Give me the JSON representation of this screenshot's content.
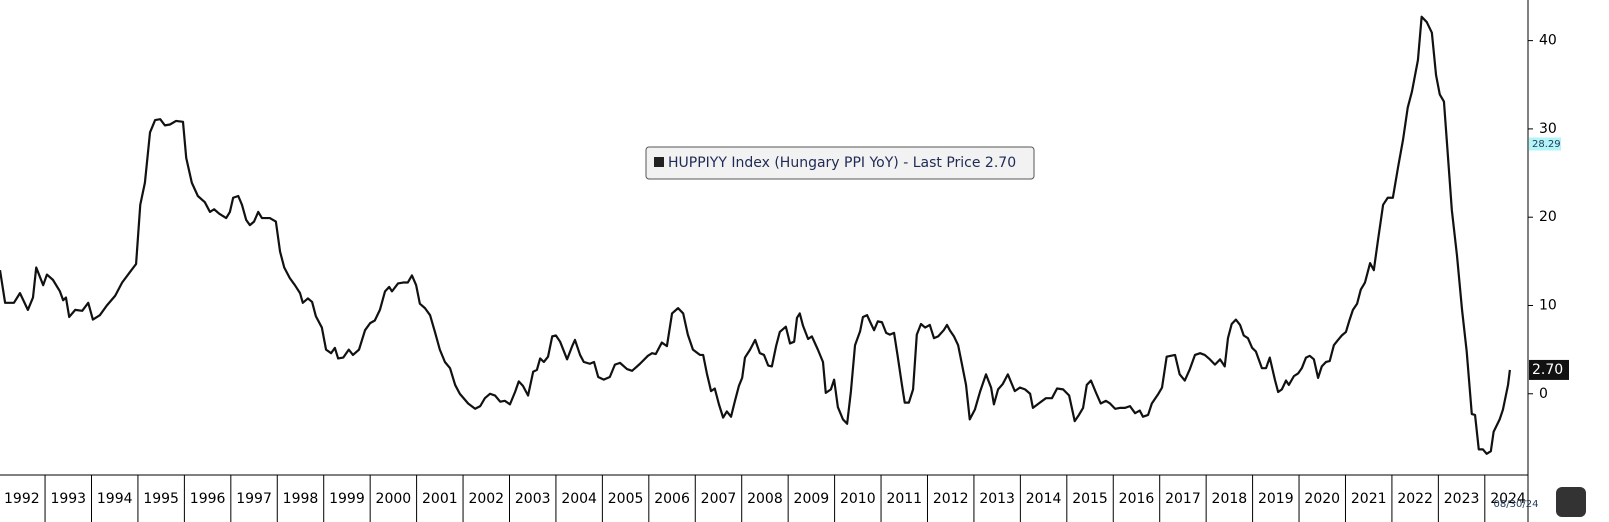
{
  "chart_data": {
    "type": "line",
    "xlim": [
      1992.03,
      2024.93
    ],
    "ylim": [
      -9.2,
      44.6
    ],
    "yticks": [
      0,
      10,
      20,
      30,
      40
    ],
    "xticks": [
      1992,
      1993,
      1994,
      1995,
      1996,
      1997,
      1998,
      1999,
      2000,
      2001,
      2002,
      2003,
      2004,
      2005,
      2006,
      2007,
      2008,
      2009,
      2010,
      2011,
      2012,
      2013,
      2014,
      2015,
      2016,
      2017,
      2018,
      2019,
      2020,
      2021,
      2022,
      2023,
      2024
    ],
    "legend": "center",
    "grid": false,
    "as_of": "08/30/24",
    "price_tags": {
      "values": [
        28.29,
        2.7
      ],
      "value_labels": [
        "28.29",
        "2.70"
      ],
      "colors": [
        "#b3f4f7",
        "#111111"
      ],
      "text_colors": [
        "#1f3a5a",
        "#ffffff"
      ]
    },
    "series": [
      {
        "name": "HUPPIYY Index (Hungary PPI YoY) - Last Price 2.70",
        "color": "#111111",
        "x": [
          1992.03,
          1992.14,
          1992.33,
          1992.46,
          1992.63,
          1992.74,
          1992.81,
          1992.96,
          1993.04,
          1993.17,
          1993.32,
          1993.39,
          1993.45,
          1993.52,
          1993.65,
          1993.8,
          1993.93,
          1994.03,
          1994.18,
          1994.33,
          1994.51,
          1994.66,
          1994.83,
          1994.96,
          1995.05,
          1995.15,
          1995.26,
          1995.37,
          1995.48,
          1995.58,
          1995.69,
          1995.82,
          1995.97,
          1996.04,
          1996.16,
          1996.29,
          1996.44,
          1996.55,
          1996.64,
          1996.75,
          1996.9,
          1996.98,
          1997.05,
          1997.16,
          1997.24,
          1997.33,
          1997.41,
          1997.5,
          1997.59,
          1997.67,
          1997.84,
          1997.97,
          1998.06,
          1998.15,
          1998.27,
          1998.38,
          1998.49,
          1998.55,
          1998.66,
          1998.75,
          1998.83,
          1998.96,
          1999.05,
          1999.16,
          1999.24,
          1999.31,
          1999.42,
          1999.54,
          1999.63,
          1999.76,
          1999.89,
          2000.0,
          2000.1,
          2000.21,
          2000.32,
          2000.41,
          2000.47,
          2000.6,
          2000.71,
          2000.81,
          2000.9,
          2000.99,
          2001.07,
          2001.18,
          2001.29,
          2001.4,
          2001.5,
          2001.61,
          2001.72,
          2001.83,
          2001.93,
          2002.11,
          2002.26,
          2002.37,
          2002.47,
          2002.58,
          2002.69,
          2002.8,
          2002.9,
          2003.01,
          2003.12,
          2003.2,
          2003.29,
          2003.4,
          2003.51,
          2003.59,
          2003.66,
          2003.74,
          2003.83,
          2003.92,
          2004.0,
          2004.09,
          2004.24,
          2004.35,
          2004.41,
          2004.52,
          2004.6,
          2004.73,
          2004.82,
          2004.91,
          2005.03,
          2005.16,
          2005.27,
          2005.38,
          2005.53,
          2005.64,
          2005.81,
          2005.98,
          2006.07,
          2006.15,
          2006.28,
          2006.39,
          2006.5,
          2006.63,
          2006.74,
          2006.84,
          2006.95,
          2007.1,
          2007.17,
          2007.25,
          2007.34,
          2007.42,
          2007.51,
          2007.6,
          2007.68,
          2007.77,
          2007.85,
          2007.94,
          2008.01,
          2008.07,
          2008.18,
          2008.29,
          2008.39,
          2008.48,
          2008.57,
          2008.65,
          2008.74,
          2008.82,
          2008.95,
          2009.04,
          2009.13,
          2009.19,
          2009.25,
          2009.32,
          2009.43,
          2009.51,
          2009.64,
          2009.75,
          2009.81,
          2009.92,
          2009.99,
          2010.07,
          2010.18,
          2010.27,
          2010.35,
          2010.44,
          2010.55,
          2010.61,
          2010.7,
          2010.76,
          2010.85,
          2010.93,
          2011.02,
          2011.11,
          2011.19,
          2011.28,
          2011.36,
          2011.45,
          2011.51,
          2011.6,
          2011.69,
          2011.77,
          2011.86,
          2011.95,
          2012.05,
          2012.14,
          2012.23,
          2012.35,
          2012.42,
          2012.48,
          2012.57,
          2012.66,
          2012.74,
          2012.83,
          2012.91,
          2013.02,
          2013.13,
          2013.26,
          2013.37,
          2013.43,
          2013.52,
          2013.62,
          2013.73,
          2013.88,
          2013.99,
          2014.1,
          2014.21,
          2014.27,
          2014.42,
          2014.55,
          2014.68,
          2014.79,
          2014.92,
          2015.05,
          2015.17,
          2015.26,
          2015.35,
          2015.43,
          2015.52,
          2015.63,
          2015.73,
          2015.84,
          2015.93,
          2016.04,
          2016.14,
          2016.25,
          2016.36,
          2016.47,
          2016.57,
          2016.64,
          2016.75,
          2016.83,
          2016.96,
          2017.05,
          2017.15,
          2017.33,
          2017.43,
          2017.54,
          2017.65,
          2017.76,
          2017.87,
          2017.97,
          2018.08,
          2018.19,
          2018.3,
          2018.4,
          2018.47,
          2018.55,
          2018.64,
          2018.73,
          2018.81,
          2018.9,
          2018.99,
          2019.07,
          2019.2,
          2019.29,
          2019.37,
          2019.48,
          2019.55,
          2019.63,
          2019.72,
          2019.78,
          2019.89,
          2019.98,
          2020.06,
          2020.15,
          2020.23,
          2020.32,
          2020.41,
          2020.49,
          2020.58,
          2020.66,
          2020.75,
          2020.84,
          2020.92,
          2021.01,
          2021.09,
          2021.16,
          2021.25,
          2021.33,
          2021.42,
          2021.53,
          2021.61,
          2021.7,
          2021.81,
          2021.91,
          2022.02,
          2022.13,
          2022.24,
          2022.34,
          2022.43,
          2022.56,
          2022.64,
          2022.75,
          2022.86,
          2022.95,
          2023.03,
          2023.12,
          2023.18,
          2023.29,
          2023.4,
          2023.51,
          2023.61,
          2023.72,
          2023.79,
          2023.87,
          2023.96,
          2024.04,
          2024.13,
          2024.19,
          2024.32,
          2024.39,
          2024.5,
          2024.54
        ],
        "values": [
          14.0,
          10.3,
          10.3,
          11.4,
          9.5,
          10.9,
          14.3,
          12.3,
          13.5,
          12.9,
          11.6,
          10.6,
          10.9,
          8.7,
          9.5,
          9.4,
          10.3,
          8.4,
          8.9,
          10.0,
          11.1,
          12.6,
          13.8,
          14.7,
          21.4,
          23.9,
          29.6,
          31.0,
          31.1,
          30.4,
          30.5,
          30.9,
          30.8,
          26.7,
          23.9,
          22.4,
          21.7,
          20.6,
          20.9,
          20.4,
          19.9,
          20.6,
          22.2,
          22.4,
          21.4,
          19.7,
          19.1,
          19.5,
          20.6,
          19.9,
          19.9,
          19.5,
          16.1,
          14.3,
          13.1,
          12.3,
          11.4,
          10.3,
          10.8,
          10.4,
          8.8,
          7.5,
          5.0,
          4.6,
          5.2,
          4.0,
          4.1,
          5.0,
          4.4,
          5.0,
          7.2,
          8.0,
          8.3,
          9.5,
          11.6,
          12.1,
          11.6,
          12.5,
          12.6,
          12.6,
          13.4,
          12.3,
          10.2,
          9.7,
          8.9,
          6.9,
          5.0,
          3.6,
          2.9,
          1.0,
          0.0,
          -1.1,
          -1.7,
          -1.4,
          -0.5,
          0.0,
          -0.2,
          -0.9,
          -0.8,
          -1.2,
          0.2,
          1.4,
          0.9,
          -0.2,
          2.5,
          2.7,
          4.0,
          3.6,
          4.2,
          6.5,
          6.6,
          5.9,
          3.9,
          5.4,
          6.1,
          4.4,
          3.6,
          3.4,
          3.6,
          1.9,
          1.6,
          1.9,
          3.3,
          3.5,
          2.8,
          2.6,
          3.4,
          4.3,
          4.6,
          4.5,
          5.8,
          5.4,
          9.1,
          9.7,
          9.1,
          6.7,
          5.0,
          4.4,
          4.4,
          2.3,
          0.3,
          0.6,
          -1.2,
          -2.7,
          -2.0,
          -2.6,
          -0.9,
          0.9,
          1.8,
          4.1,
          5.0,
          6.1,
          4.6,
          4.4,
          3.2,
          3.1,
          5.4,
          7.0,
          7.6,
          5.7,
          5.9,
          8.6,
          9.1,
          7.7,
          6.2,
          6.5,
          5.0,
          3.6,
          0.1,
          0.5,
          1.6,
          -1.5,
          -2.9,
          -3.4,
          0.2,
          5.5,
          7.1,
          8.7,
          8.9,
          8.2,
          7.2,
          8.2,
          8.1,
          6.9,
          6.7,
          6.9,
          4.2,
          1.0,
          -1.0,
          -1.0,
          0.5,
          6.7,
          7.9,
          7.5,
          7.8,
          6.3,
          6.5,
          7.2,
          7.8,
          7.2,
          6.5,
          5.5,
          3.4,
          1.0,
          -2.9,
          -1.8,
          0.2,
          2.2,
          0.7,
          -1.2,
          0.5,
          1.1,
          2.2,
          0.3,
          0.7,
          0.5,
          0.0,
          -1.6,
          -1.0,
          -0.5,
          -0.5,
          0.6,
          0.5,
          -0.2,
          -3.1,
          -2.4,
          -1.6,
          1.0,
          1.5,
          0.1,
          -1.1,
          -0.8,
          -1.1,
          -1.7,
          -1.6,
          -1.6,
          -1.4,
          -2.2,
          -1.9,
          -2.6,
          -2.4,
          -1.1,
          -0.1,
          0.7,
          4.2,
          4.4,
          2.2,
          1.5,
          2.8,
          4.4,
          4.6,
          4.4,
          3.9,
          3.3,
          3.9,
          3.1,
          6.3,
          7.9,
          8.4,
          7.8,
          6.6,
          6.3,
          5.2,
          4.8,
          2.9,
          2.9,
          4.1,
          1.6,
          0.2,
          0.5,
          1.5,
          1.0,
          2.0,
          2.3,
          2.9,
          4.1,
          4.3,
          3.9,
          1.8,
          3.1,
          3.6,
          3.7,
          5.5,
          6.1,
          6.6,
          7.0,
          8.4,
          9.5,
          10.2,
          11.8,
          12.6,
          14.8,
          14.0,
          17.4,
          21.4,
          22.2,
          22.2,
          25.6,
          28.8,
          32.4,
          34.2,
          37.8,
          42.7,
          42.1,
          40.9,
          36.1,
          33.9,
          33.1,
          28.8,
          20.8,
          15.7,
          9.5,
          4.8,
          -2.3,
          -2.4,
          -6.3,
          -6.3,
          -6.8,
          -6.5,
          -4.3,
          -2.9,
          -1.8,
          1.0,
          2.7
        ]
      }
    ]
  }
}
